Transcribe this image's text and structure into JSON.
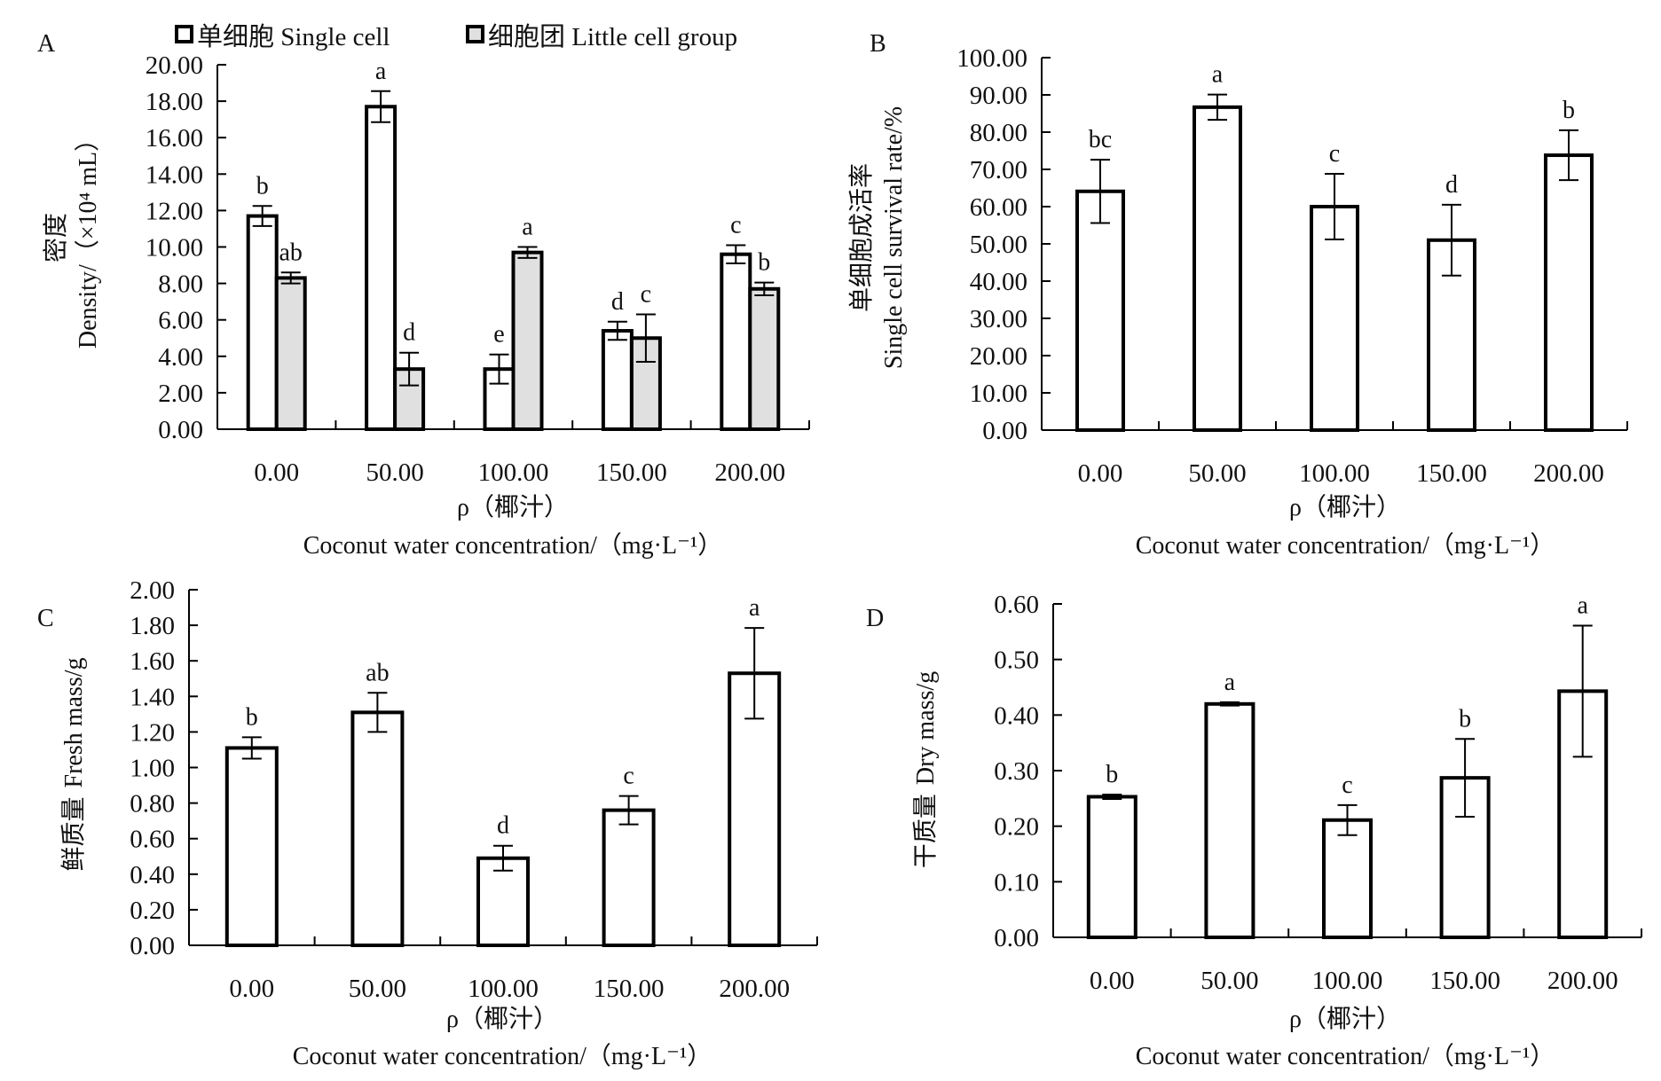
{
  "figure": {
    "x_title_cn": "ρ（椰汁）",
    "x_title_en": "Coconut water concentration/（mg·L⁻¹）"
  },
  "chart_data": [
    {
      "panel": "A",
      "type": "bar",
      "categories": [
        "0.00",
        "50.00",
        "100.00",
        "150.00",
        "200.00"
      ],
      "xlabel_cn": "ρ（椰汁）",
      "xlabel_en": "Coconut water concentration/（mg·L⁻¹）",
      "ylabel_cn": "密度",
      "ylabel_en": "Density/（×10⁴ mL）",
      "ylim": [
        0,
        20
      ],
      "yticks": [
        "0.00",
        "2.00",
        "4.00",
        "6.00",
        "8.00",
        "10.00",
        "12.00",
        "14.00",
        "16.00",
        "18.00",
        "20.00"
      ],
      "legend": {
        "placement": "top",
        "entries": [
          "单细胞 Single cell",
          "细胞团 Little cell group"
        ]
      },
      "series": [
        {
          "name": "单细胞 Single cell",
          "color": "#ffffff",
          "values": [
            11.7,
            17.7,
            3.3,
            5.4,
            9.6
          ],
          "errors": [
            0.55,
            0.85,
            0.8,
            0.5,
            0.5
          ],
          "letters": [
            "b",
            "a",
            "e",
            "d",
            "c"
          ]
        },
        {
          "name": "细胞团 Little cell group",
          "color": "#e0e0e0",
          "values": [
            8.3,
            3.3,
            9.7,
            5.0,
            7.7
          ],
          "errors": [
            0.3,
            0.9,
            0.3,
            1.3,
            0.35
          ],
          "letters": [
            "ab",
            "d",
            "a",
            "c",
            "b"
          ]
        }
      ],
      "grid": false
    },
    {
      "panel": "B",
      "type": "bar",
      "categories": [
        "0.00",
        "50.00",
        "100.00",
        "150.00",
        "200.00"
      ],
      "xlabel_cn": "ρ（椰汁）",
      "xlabel_en": "Coconut water concentration/（mg·L⁻¹）",
      "ylabel_cn": "单细胞成活率",
      "ylabel_en": "Single cell survival rate/%",
      "ylim": [
        0,
        100
      ],
      "yticks": [
        "0.00",
        "10.00",
        "20.00",
        "30.00",
        "40.00",
        "50.00",
        "60.00",
        "70.00",
        "80.00",
        "90.00",
        "100.00"
      ],
      "series": [
        {
          "name": "单细胞成活率",
          "color": "#ffffff",
          "values": [
            64.1,
            86.7,
            60.0,
            51.0,
            73.8
          ],
          "errors": [
            8.5,
            3.4,
            8.8,
            9.5,
            6.7
          ],
          "letters": [
            "bc",
            "a",
            "c",
            "d",
            "b"
          ]
        }
      ],
      "grid": false
    },
    {
      "panel": "C",
      "type": "bar",
      "categories": [
        "0.00",
        "50.00",
        "100.00",
        "150.00",
        "200.00"
      ],
      "xlabel_cn": "ρ（椰汁）",
      "xlabel_en": "Coconut water concentration/（mg·L⁻¹）",
      "ylabel_cn": "鲜质量",
      "ylabel_en": "Fresh mass/g",
      "ylim": [
        0,
        2
      ],
      "yticks": [
        "0.00",
        "0.20",
        "0.40",
        "0.60",
        "0.80",
        "1.00",
        "1.20",
        "1.40",
        "1.60",
        "1.80",
        "2.00"
      ],
      "series": [
        {
          "name": "鲜质量 Fresh mass",
          "color": "#ffffff",
          "values": [
            1.11,
            1.31,
            0.49,
            0.76,
            1.53
          ],
          "errors": [
            0.06,
            0.11,
            0.07,
            0.08,
            0.255
          ],
          "letters": [
            "b",
            "ab",
            "d",
            "c",
            "a"
          ]
        }
      ],
      "grid": false
    },
    {
      "panel": "D",
      "type": "bar",
      "categories": [
        "0.00",
        "50.00",
        "100.00",
        "150.00",
        "200.00"
      ],
      "xlabel_cn": "ρ（椰汁）",
      "xlabel_en": "Coconut water concentration/（mg·L⁻¹）",
      "ylabel_cn": "干质量",
      "ylabel_en": "Dry mass/g",
      "ylim": [
        0,
        0.6
      ],
      "yticks": [
        "0.00",
        "0.10",
        "0.20",
        "0.30",
        "0.40",
        "0.50",
        "0.60"
      ],
      "series": [
        {
          "name": "干质量 Dry mass",
          "color": "#ffffff",
          "values": [
            0.253,
            0.42,
            0.211,
            0.287,
            0.443
          ],
          "errors": [
            0.004,
            0.003,
            0.027,
            0.07,
            0.118
          ],
          "letters": [
            "b",
            "a",
            "c",
            "b",
            "a"
          ]
        }
      ],
      "grid": false
    }
  ]
}
